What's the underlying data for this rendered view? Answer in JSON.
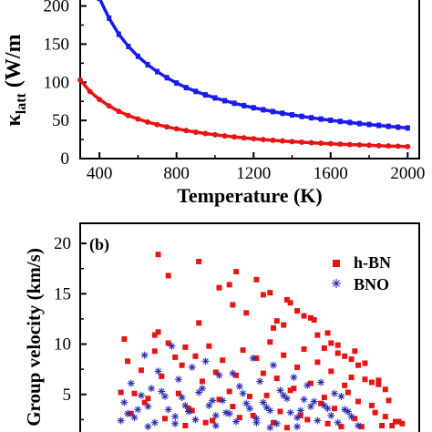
{
  "chart_data": [
    {
      "type": "line",
      "panel_label": "",
      "ylabel_main": "κ",
      "ylabel_sub": "latt",
      "ylabel_tail": " (W/m",
      "xlabel": "Temperature (K)",
      "xlim": [
        300,
        2060
      ],
      "ylim": [
        0,
        215
      ],
      "xticks": [
        "400",
        "800",
        "1200",
        "1600",
        "2000"
      ],
      "yticks": [
        "0",
        "50",
        "100",
        "150",
        "200"
      ],
      "colors": {
        "blue": "#1a1aee",
        "red": "#e81414"
      },
      "series": [
        {
          "color": "blue",
          "x": [
            400,
            450,
            500,
            550,
            600,
            650,
            700,
            750,
            800,
            850,
            900,
            950,
            1000,
            1050,
            1100,
            1150,
            1200,
            1250,
            1300,
            1350,
            1400,
            1450,
            1500,
            1550,
            1600,
            1650,
            1700,
            1750,
            1800,
            1850,
            1900,
            1950,
            2000
          ],
          "y": [
            210,
            184,
            163,
            147,
            134,
            123,
            114,
            106,
            99,
            93,
            88,
            83.5,
            79.5,
            75.8,
            72.5,
            69.4,
            66.6,
            64,
            61.6,
            59.4,
            57.3,
            55.3,
            53.5,
            51.8,
            50.2,
            48.7,
            47.3,
            45.9,
            44.7,
            43.5,
            42.3,
            41.2,
            40.1
          ]
        },
        {
          "color": "red",
          "x": [
            300,
            350,
            400,
            450,
            500,
            550,
            600,
            650,
            700,
            750,
            800,
            850,
            900,
            950,
            1000,
            1050,
            1100,
            1150,
            1200,
            1250,
            1300,
            1350,
            1400,
            1450,
            1500,
            1550,
            1600,
            1650,
            1700,
            1750,
            1800,
            1850,
            1900,
            1950,
            2000
          ],
          "y": [
            103,
            88,
            77.5,
            69,
            62,
            56.5,
            51.8,
            47.9,
            44.5,
            41.6,
            39,
            36.7,
            34.7,
            32.8,
            31.2,
            29.7,
            28.4,
            27.1,
            26,
            24.9,
            24,
            23.1,
            22.2,
            21.5,
            20.8,
            20.1,
            19.5,
            18.9,
            18.4,
            17.9,
            17.4,
            16.9,
            16.5,
            16.1,
            15.7
          ]
        }
      ]
    },
    {
      "type": "scatter",
      "panel_label": "(b)",
      "ylabel": "Group velocity (km/s)",
      "ylim": [
        0,
        22
      ],
      "yticks": [
        "5",
        "10",
        "15",
        "20"
      ],
      "legend_placement": "top-right",
      "colors": {
        "red": "#e81414",
        "blue": "#2a2ab0"
      },
      "series": [
        {
          "name": "h-BN",
          "color": "red",
          "marker": "square",
          "x": [
            0.23,
            0.26,
            0.22,
            0.35,
            0.44,
            0.46,
            0.49,
            0.52,
            0.54,
            0.56,
            0.58,
            0.6,
            0.62,
            0.64,
            0.66,
            0.68,
            0.7,
            0.72,
            0.74,
            0.76,
            0.78,
            0.8,
            0.82,
            0.84,
            0.86,
            0.88,
            0.9,
            0.12,
            0.14,
            0.16,
            0.18,
            0.2,
            0.22,
            0.24,
            0.26,
            0.28,
            0.3,
            0.32,
            0.34,
            0.36,
            0.38,
            0.4,
            0.42,
            0.44,
            0.46,
            0.48,
            0.5,
            0.52,
            0.54,
            0.56,
            0.58,
            0.6,
            0.62,
            0.64,
            0.66,
            0.68,
            0.7,
            0.72,
            0.74,
            0.76,
            0.78,
            0.8,
            0.82,
            0.84,
            0.86,
            0.88,
            0.9,
            0.92,
            0.94,
            0.96,
            0.15,
            0.19,
            0.25,
            0.29,
            0.33,
            0.37,
            0.41,
            0.45,
            0.51,
            0.55,
            0.59,
            0.63,
            0.67,
            0.71,
            0.75,
            0.79,
            0.83,
            0.87,
            0.91,
            0.95,
            0.17,
            0.21,
            0.27,
            0.31,
            0.39,
            0.43,
            0.47,
            0.53,
            0.57,
            0.61,
            0.65,
            0.69,
            0.73,
            0.77,
            0.81,
            0.85,
            0.89,
            0.93,
            0.97,
            0.13,
            0.23,
            0.31,
            0.35,
            0.41,
            0.45,
            0.57,
            0.61,
            0.69,
            0.73,
            0.81
          ],
          "y": [
            18.9,
            16.8,
            10.9,
            18.2,
            15.9,
            17.2,
            13.1,
            16.4,
            14.9,
            15.1,
            12.3,
            11.9,
            14.1,
            13.3,
            12.8,
            12.6,
            10.9,
            9.6,
            10.1,
            9.1,
            8.8,
            8.5,
            7.9,
            6.5,
            6.2,
            6.0,
            5.5,
            5.2,
            8.3,
            5.1,
            7.4,
            4.6,
            9.3,
            6.8,
            10.1,
            8.7,
            7.9,
            3.6,
            8.8,
            6.3,
            9.8,
            7.2,
            8.4,
            5.3,
            6.9,
            9.4,
            4.8,
            8.6,
            7.1,
            10.2,
            6.6,
            8.9,
            5.4,
            7.7,
            9.5,
            6.1,
            8.2,
            4.7,
            7.3,
            9.9,
            5.9,
            6.7,
            4.3,
            8.1,
            3.9,
            6.4,
            2.8,
            1.9,
            2.3,
            1.5,
            3.1,
            4.2,
            2.6,
            5.1,
            3.4,
            2.2,
            4.5,
            3.8,
            2.9,
            4.9,
            3.3,
            5.6,
            2.5,
            4.1,
            3.6,
            5.2,
            1.8,
            3.2,
            4.4,
            2.1,
            1.2,
            1.6,
            0.9,
            1.9,
            2.4,
            1.1,
            2.7,
            1.5,
            2.2,
            1.7,
            2.9,
            1.3,
            2.1,
            1.8,
            2.6,
            1.4,
            1.9,
            2.3,
            1.1,
            10.5,
            11.2,
            9.7,
            12.1,
            15.6,
            13.9,
            11.6,
            14.4,
            12.4,
            11.1,
            9.3
          ]
        },
        {
          "name": "BNO",
          "color": "blue",
          "marker": "asterisk",
          "x": [
            0.13,
            0.15,
            0.17,
            0.19,
            0.21,
            0.23,
            0.25,
            0.27,
            0.29,
            0.31,
            0.33,
            0.35,
            0.37,
            0.39,
            0.41,
            0.43,
            0.45,
            0.47,
            0.49,
            0.51,
            0.53,
            0.55,
            0.57,
            0.59,
            0.61,
            0.63,
            0.65,
            0.67,
            0.69,
            0.71,
            0.73,
            0.75,
            0.77,
            0.79,
            0.12,
            0.14,
            0.16,
            0.18,
            0.2,
            0.22,
            0.24,
            0.26,
            0.28,
            0.3,
            0.32,
            0.34,
            0.36,
            0.38,
            0.4,
            0.42,
            0.44,
            0.46,
            0.48,
            0.5,
            0.52,
            0.54,
            0.56,
            0.58,
            0.6,
            0.62,
            0.64,
            0.66,
            0.68,
            0.7,
            0.72,
            0.74,
            0.76,
            0.78,
            0.8,
            0.82,
            0.16,
            0.2,
            0.24,
            0.28,
            0.32,
            0.36,
            0.4,
            0.44,
            0.48,
            0.52,
            0.56,
            0.6,
            0.64,
            0.68,
            0.72,
            0.76,
            0.8,
            0.84,
            0.88,
            0.92
          ],
          "y": [
            4.2,
            6.1,
            3.5,
            8.9,
            5.6,
            7.3,
            4.8,
            9.8,
            6.5,
            3.9,
            7.7,
            5.2,
            8.3,
            4.4,
            6.9,
            3.2,
            7.1,
            5.8,
            4.1,
            8.6,
            6.3,
            3.7,
            7.9,
            5.4,
            4.6,
            6.7,
            3.4,
            5.9,
            4.3,
            6.2,
            3.6,
            5.1,
            4.8,
            3.3,
            2.4,
            3.1,
            2.7,
            4.9,
            3.8,
            2.2,
            5.3,
            3.5,
            2.8,
            4.7,
            3.3,
            2.5,
            5.6,
            3.9,
            2.9,
            4.4,
            3.1,
            2.3,
            5.1,
            3.6,
            2.6,
            4.2,
            3.4,
            2.1,
            4.9,
            3.2,
            2.7,
            4.5,
            3.8,
            2.4,
            3.9,
            2.9,
            2.2,
            3.5,
            2.8,
            1.9,
            1.4,
            1.8,
            1.2,
            2.1,
            1.6,
            1.1,
            1.9,
            1.5,
            1.3,
            2.2,
            1.7,
            1.2,
            1.8,
            1.4,
            1.1,
            1.6,
            1.3,
            1.5,
            1.2,
            1.1
          ]
        }
      ]
    }
  ]
}
